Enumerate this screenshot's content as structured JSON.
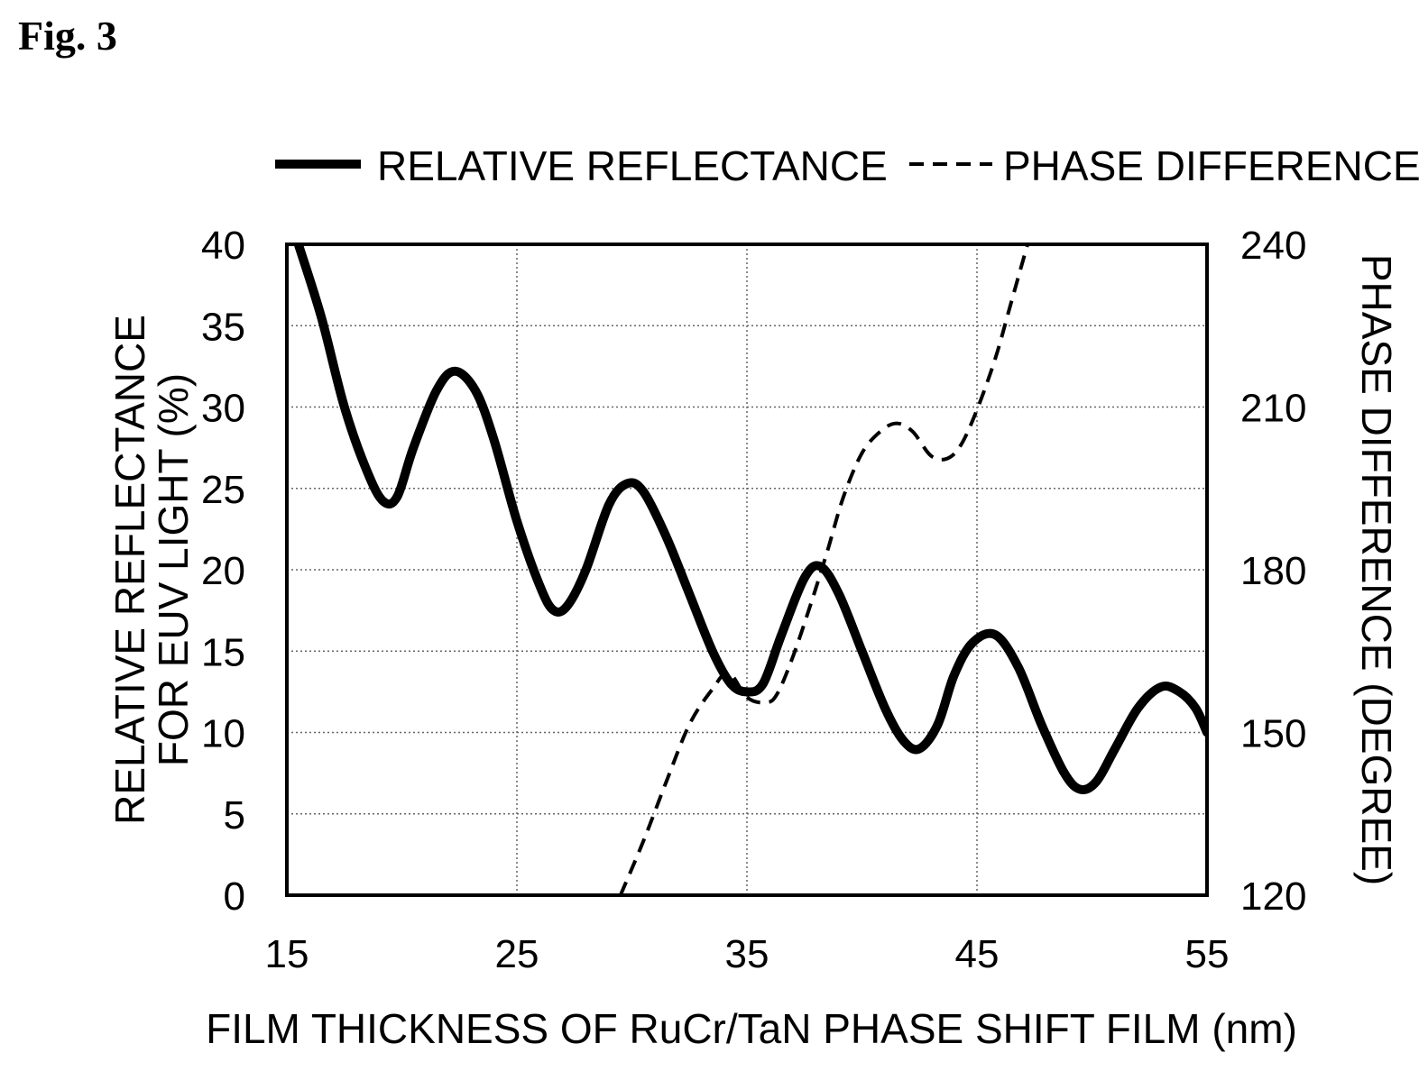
{
  "figure": {
    "label": "Fig. 3"
  },
  "chart_data": {
    "type": "line",
    "xlabel": "FILM THICKNESS OF RuCr/TaN PHASE SHIFT FILM (nm)",
    "ylabel_lines": [
      "RELATIVE REFLECTANCE",
      "FOR EUV LIGHT (%)"
    ],
    "y2label": "PHASE DIFFERENCE (DEGREE)",
    "xlim": [
      15,
      55
    ],
    "ylim": [
      0,
      40
    ],
    "y2lim": [
      120,
      240
    ],
    "x_ticks": [
      "15",
      "25",
      "35",
      "45",
      "55"
    ],
    "y_ticks": [
      "0",
      "5",
      "10",
      "15",
      "20",
      "25",
      "30",
      "35",
      "40"
    ],
    "y2_ticks": [
      "120",
      "150",
      "180",
      "210",
      "240"
    ],
    "grid": true,
    "legend_position": "top",
    "series": [
      {
        "name": "RELATIVE REFLECTANCE",
        "axis": "left",
        "style": "solid",
        "x": [
          15.5,
          16.5,
          17.5,
          18.5,
          19.2,
          19.8,
          20.5,
          21.5,
          22.3,
          23.2,
          24.0,
          25.0,
          26.0,
          26.6,
          27.2,
          28.0,
          29.0,
          29.8,
          30.5,
          31.5,
          32.5,
          33.5,
          34.3,
          35.0,
          35.7,
          36.5,
          37.5,
          38.2,
          39.0,
          40.0,
          41.0,
          41.8,
          42.5,
          43.3,
          44.0,
          44.8,
          45.8,
          46.8,
          47.8,
          48.8,
          49.5,
          50.2,
          51.0,
          52.0,
          53.0,
          53.8,
          54.5,
          55.0
        ],
        "values": [
          40.0,
          35.5,
          30.0,
          26.0,
          24.2,
          24.5,
          27.5,
          31.0,
          32.2,
          31.0,
          28.0,
          23.0,
          19.0,
          17.5,
          17.8,
          20.0,
          24.0,
          25.3,
          24.8,
          22.0,
          18.5,
          15.0,
          13.0,
          12.5,
          13.0,
          16.0,
          19.5,
          20.2,
          18.5,
          15.0,
          11.5,
          9.5,
          9.0,
          10.5,
          13.5,
          15.5,
          16.0,
          14.0,
          10.5,
          7.5,
          6.5,
          7.0,
          9.0,
          11.5,
          12.8,
          12.5,
          11.5,
          10.0
        ]
      },
      {
        "name": "PHASE DIFFERENCE",
        "axis": "right",
        "style": "dashed",
        "x": [
          29.5,
          30.5,
          31.5,
          32.5,
          33.5,
          34.2,
          35.0,
          35.8,
          36.3,
          37.0,
          37.8,
          38.5,
          39.2,
          40.0,
          40.8,
          41.5,
          42.2,
          43.0,
          43.7,
          44.3,
          45.0,
          45.8,
          46.5,
          47.2
        ],
        "values": [
          120.0,
          130.0,
          141.0,
          151.5,
          158.0,
          161.0,
          156.5,
          155.5,
          157.0,
          164.0,
          174.0,
          183.5,
          193.5,
          201.5,
          205.5,
          207.0,
          205.5,
          201.0,
          200.5,
          203.0,
          209.5,
          219.0,
          229.5,
          240.0
        ]
      }
    ]
  }
}
